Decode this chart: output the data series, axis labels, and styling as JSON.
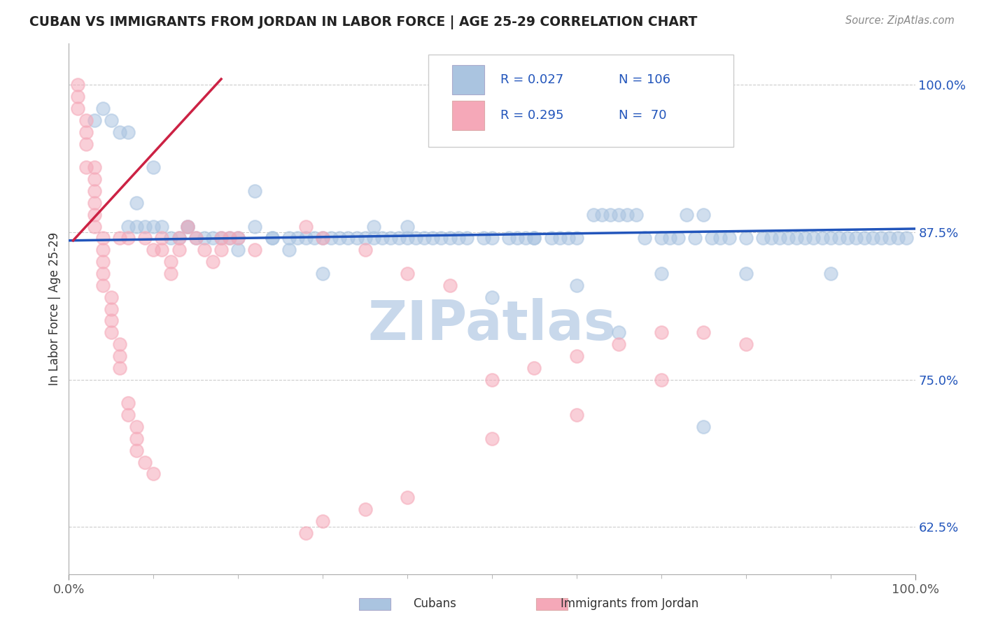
{
  "title": "CUBAN VS IMMIGRANTS FROM JORDAN IN LABOR FORCE | AGE 25-29 CORRELATION CHART",
  "source_text": "Source: ZipAtlas.com",
  "ylabel": "In Labor Force | Age 25-29",
  "xmin": 0.0,
  "xmax": 1.0,
  "ymin": 0.585,
  "ymax": 1.035,
  "yticks": [
    0.625,
    0.75,
    0.875,
    1.0
  ],
  "ytick_labels": [
    "62.5%",
    "75.0%",
    "87.5%",
    "100.0%"
  ],
  "xtick_left": "0.0%",
  "xtick_right": "100.0%",
  "legend_r_blue": "R = 0.027",
  "legend_n_blue": "N = 106",
  "legend_r_pink": "R = 0.295",
  "legend_n_pink": "N =  70",
  "blue_color": "#aac4e0",
  "pink_color": "#f5a8b8",
  "trend_blue_color": "#2255bb",
  "trend_pink_color": "#cc2244",
  "text_blue_color": "#2255bb",
  "watermark": "ZIPatlas",
  "watermark_color": "#c8d8eb",
  "legend_label_blue": "Cubans",
  "legend_label_pink": "Immigrants from Jordan",
  "blue_x": [
    0.03,
    0.04,
    0.05,
    0.06,
    0.07,
    0.07,
    0.08,
    0.08,
    0.09,
    0.1,
    0.1,
    0.11,
    0.12,
    0.13,
    0.14,
    0.15,
    0.16,
    0.17,
    0.18,
    0.19,
    0.2,
    0.22,
    0.24,
    0.24,
    0.26,
    0.27,
    0.28,
    0.29,
    0.3,
    0.31,
    0.32,
    0.33,
    0.34,
    0.35,
    0.36,
    0.37,
    0.38,
    0.39,
    0.4,
    0.41,
    0.42,
    0.43,
    0.44,
    0.45,
    0.46,
    0.47,
    0.49,
    0.5,
    0.52,
    0.53,
    0.54,
    0.55,
    0.57,
    0.58,
    0.59,
    0.6,
    0.62,
    0.63,
    0.64,
    0.65,
    0.66,
    0.67,
    0.68,
    0.7,
    0.71,
    0.72,
    0.73,
    0.74,
    0.75,
    0.76,
    0.77,
    0.78,
    0.8,
    0.82,
    0.83,
    0.84,
    0.85,
    0.86,
    0.87,
    0.88,
    0.89,
    0.9,
    0.91,
    0.92,
    0.93,
    0.94,
    0.95,
    0.96,
    0.97,
    0.98,
    0.99,
    0.3,
    0.22,
    0.36,
    0.5,
    0.6,
    0.7,
    0.8,
    0.9,
    0.14,
    0.2,
    0.26,
    0.4,
    0.55,
    0.65,
    0.75
  ],
  "blue_y": [
    0.97,
    0.98,
    0.97,
    0.96,
    0.96,
    0.88,
    0.9,
    0.88,
    0.88,
    0.93,
    0.88,
    0.88,
    0.87,
    0.87,
    0.88,
    0.87,
    0.87,
    0.87,
    0.87,
    0.87,
    0.87,
    0.88,
    0.87,
    0.87,
    0.87,
    0.87,
    0.87,
    0.87,
    0.87,
    0.87,
    0.87,
    0.87,
    0.87,
    0.87,
    0.87,
    0.87,
    0.87,
    0.87,
    0.87,
    0.87,
    0.87,
    0.87,
    0.87,
    0.87,
    0.87,
    0.87,
    0.87,
    0.87,
    0.87,
    0.87,
    0.87,
    0.87,
    0.87,
    0.87,
    0.87,
    0.87,
    0.89,
    0.89,
    0.89,
    0.89,
    0.89,
    0.89,
    0.87,
    0.87,
    0.87,
    0.87,
    0.89,
    0.87,
    0.89,
    0.87,
    0.87,
    0.87,
    0.87,
    0.87,
    0.87,
    0.87,
    0.87,
    0.87,
    0.87,
    0.87,
    0.87,
    0.87,
    0.87,
    0.87,
    0.87,
    0.87,
    0.87,
    0.87,
    0.87,
    0.87,
    0.87,
    0.84,
    0.91,
    0.88,
    0.82,
    0.83,
    0.84,
    0.84,
    0.84,
    0.88,
    0.86,
    0.86,
    0.88,
    0.87,
    0.79,
    0.71
  ],
  "pink_x": [
    0.01,
    0.01,
    0.01,
    0.02,
    0.02,
    0.02,
    0.02,
    0.03,
    0.03,
    0.03,
    0.03,
    0.03,
    0.03,
    0.04,
    0.04,
    0.04,
    0.04,
    0.04,
    0.05,
    0.05,
    0.05,
    0.05,
    0.06,
    0.06,
    0.06,
    0.06,
    0.07,
    0.07,
    0.07,
    0.08,
    0.08,
    0.08,
    0.09,
    0.09,
    0.1,
    0.1,
    0.11,
    0.11,
    0.12,
    0.12,
    0.13,
    0.13,
    0.14,
    0.15,
    0.16,
    0.17,
    0.18,
    0.18,
    0.19,
    0.2,
    0.22,
    0.28,
    0.3,
    0.35,
    0.4,
    0.45,
    0.5,
    0.55,
    0.6,
    0.65,
    0.7,
    0.75,
    0.8,
    0.28,
    0.3,
    0.35,
    0.4,
    0.5,
    0.6,
    0.7
  ],
  "pink_y": [
    1.0,
    0.99,
    0.98,
    0.97,
    0.96,
    0.95,
    0.93,
    0.93,
    0.92,
    0.91,
    0.9,
    0.89,
    0.88,
    0.87,
    0.86,
    0.85,
    0.84,
    0.83,
    0.82,
    0.81,
    0.8,
    0.79,
    0.78,
    0.77,
    0.76,
    0.87,
    0.73,
    0.72,
    0.87,
    0.71,
    0.7,
    0.69,
    0.87,
    0.68,
    0.86,
    0.67,
    0.87,
    0.86,
    0.85,
    0.84,
    0.87,
    0.86,
    0.88,
    0.87,
    0.86,
    0.85,
    0.87,
    0.86,
    0.87,
    0.87,
    0.86,
    0.88,
    0.87,
    0.86,
    0.84,
    0.83,
    0.75,
    0.76,
    0.77,
    0.78,
    0.79,
    0.79,
    0.78,
    0.62,
    0.63,
    0.64,
    0.65,
    0.7,
    0.72,
    0.75
  ],
  "pink_trend_x": [
    0.005,
    0.18
  ],
  "pink_trend_y": [
    0.868,
    1.005
  ],
  "blue_trend_x": [
    0.0,
    1.0
  ],
  "blue_trend_y": [
    0.868,
    0.878
  ]
}
